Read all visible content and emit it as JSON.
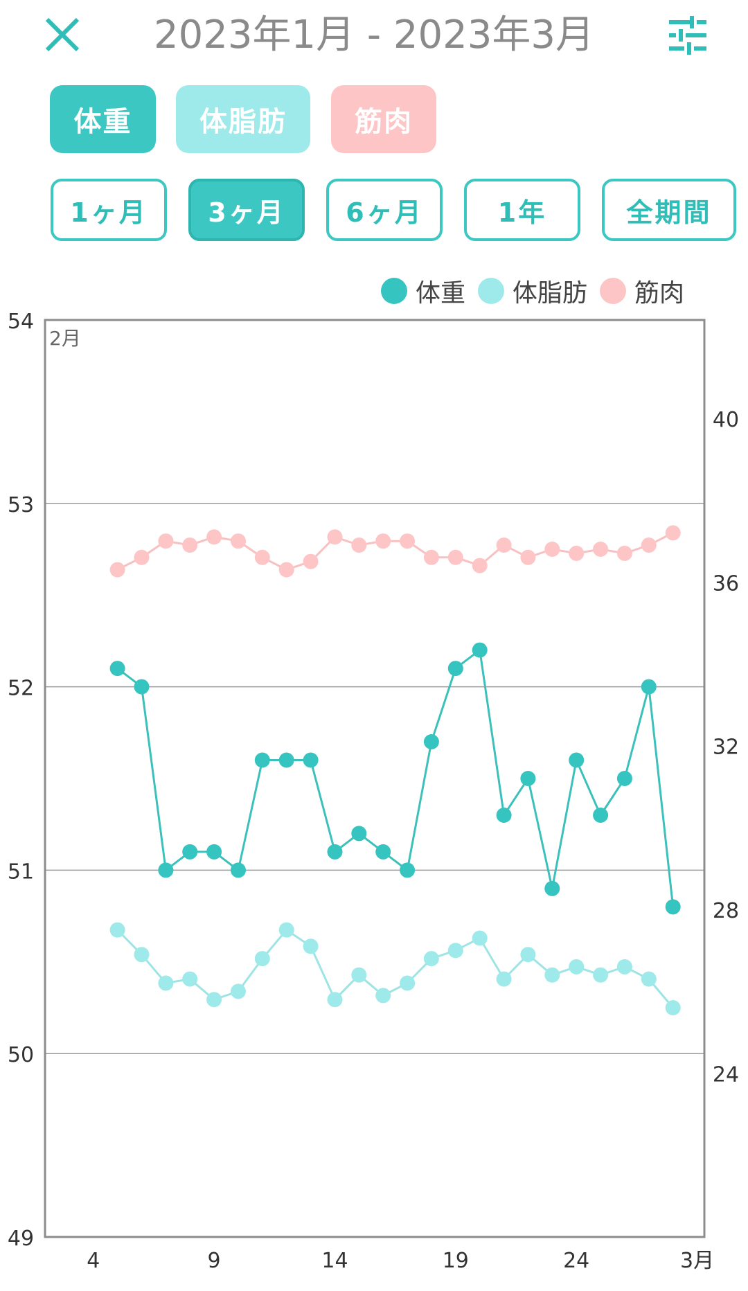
{
  "header": {
    "title": "2023年1月 - 2023年3月",
    "close_icon": "close-icon",
    "settings_icon": "sliders-icon"
  },
  "type_tabs": [
    {
      "label": "体重",
      "color": "#3cc7c2"
    },
    {
      "label": "体脂肪",
      "color": "#9ee9e9"
    },
    {
      "label": "筋肉",
      "color": "#fdc5c5"
    }
  ],
  "period_tabs": [
    {
      "label": "1ヶ月",
      "active": false
    },
    {
      "label": "3ヶ月",
      "active": true
    },
    {
      "label": "6ヶ月",
      "active": false
    },
    {
      "label": "1年",
      "active": false
    },
    {
      "label": "全期間",
      "active": false
    }
  ],
  "legend": [
    {
      "label": "体重",
      "color": "#3cc7c2"
    },
    {
      "label": "体脂肪",
      "color": "#9ee9e9"
    },
    {
      "label": "筋肉",
      "color": "#fdc5c5"
    }
  ],
  "chart_data": {
    "type": "line",
    "month_label": "2月",
    "x_ticks": [
      {
        "x": 4,
        "label": "4"
      },
      {
        "x": 9,
        "label": "9"
      },
      {
        "x": 14,
        "label": "14"
      },
      {
        "x": 19,
        "label": "19"
      },
      {
        "x": 24,
        "label": "24"
      },
      {
        "x": 29,
        "label": "3月"
      }
    ],
    "xlim": [
      2,
      29.3
    ],
    "y_left": {
      "min": 49,
      "max": 54,
      "ticks": [
        49,
        50,
        51,
        52,
        53,
        54
      ]
    },
    "y_right": {
      "min": 20,
      "max": 42.4,
      "ticks": [
        24,
        28,
        32,
        36,
        40
      ]
    },
    "grid": true,
    "series": [
      {
        "name": "体重",
        "axis": "left",
        "color": "#35c4bf",
        "line_color": "#3cc0bb",
        "x": [
          5,
          6,
          7,
          8,
          9,
          10,
          11,
          12,
          13,
          14,
          15,
          16,
          17,
          18,
          19,
          20,
          21,
          22,
          23,
          24,
          25,
          26,
          27,
          28
        ],
        "values": [
          52.1,
          52.0,
          51.0,
          51.1,
          51.1,
          51.0,
          51.6,
          51.6,
          51.6,
          51.1,
          51.2,
          51.1,
          51.0,
          51.7,
          52.1,
          52.2,
          51.3,
          51.5,
          50.9,
          51.6,
          51.3,
          51.5,
          52.0,
          50.8
        ]
      },
      {
        "name": "体脂肪",
        "axis": "right",
        "color": "#9ee9e9",
        "line_color": "#9ee4e4",
        "x": [
          5,
          6,
          7,
          8,
          9,
          10,
          11,
          12,
          13,
          14,
          15,
          16,
          17,
          18,
          19,
          20,
          21,
          22,
          23,
          24,
          25,
          26,
          27,
          28
        ],
        "values": [
          27.5,
          26.9,
          26.2,
          26.3,
          25.8,
          26.0,
          26.8,
          27.5,
          27.1,
          25.8,
          26.4,
          25.9,
          26.2,
          26.8,
          27.0,
          27.3,
          26.3,
          26.9,
          26.4,
          26.6,
          26.4,
          26.6,
          26.3,
          25.6
        ]
      },
      {
        "name": "筋肉",
        "axis": "right",
        "color": "#fdc5c5",
        "line_color": "#f8c0c0",
        "x": [
          5,
          6,
          7,
          8,
          9,
          10,
          11,
          12,
          13,
          14,
          15,
          16,
          17,
          18,
          19,
          20,
          21,
          22,
          23,
          24,
          25,
          26,
          27,
          28
        ],
        "values": [
          36.3,
          36.6,
          37.0,
          36.9,
          37.1,
          37.0,
          36.6,
          36.3,
          36.5,
          37.1,
          36.9,
          37.0,
          37.0,
          36.6,
          36.6,
          36.4,
          36.9,
          36.6,
          36.8,
          36.7,
          36.8,
          36.7,
          36.9,
          37.2
        ]
      }
    ]
  }
}
